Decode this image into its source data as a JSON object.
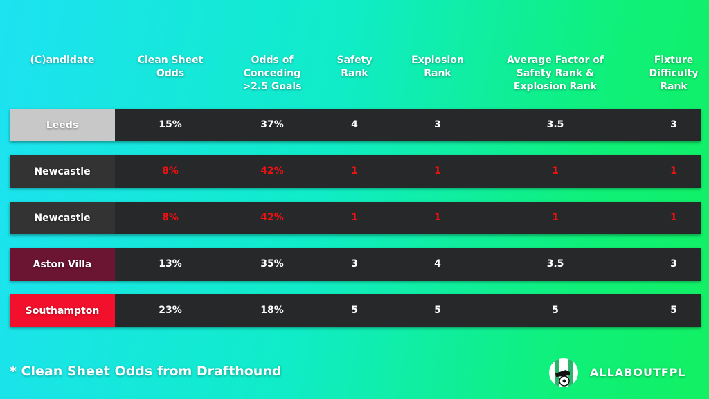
{
  "headers": [
    "(C)andidate",
    "Clean Sheet|Odds",
    "Odds of|Conceding|>2.5 Goals",
    "Safety|Rank",
    "Explosion|Rank",
    "Average Factor of|Safety Rank &|Explosion Rank",
    "Fixture|Difficulty|Rank"
  ],
  "rows": [
    {
      "team": "Leeds",
      "team_color": "#c8c8c8",
      "highlight": false,
      "values": [
        "15%",
        "37%",
        "4",
        "3",
        "3.5",
        "3"
      ]
    },
    {
      "team": "Newcastle",
      "team_color": "#333333",
      "highlight": true,
      "values": [
        "8%",
        "42%",
        "1",
        "1",
        "1",
        "1"
      ]
    },
    {
      "team": "Newcastle",
      "team_color": "#333333",
      "highlight": true,
      "values": [
        "8%",
        "42%",
        "1",
        "1",
        "1",
        "1"
      ]
    },
    {
      "team": "Aston Villa",
      "team_color": "#6b1532",
      "highlight": false,
      "values": [
        "13%",
        "35%",
        "3",
        "4",
        "3.5",
        "3"
      ]
    },
    {
      "team": "Southampton",
      "team_color": "#f2102c",
      "highlight": false,
      "values": [
        "23%",
        "18%",
        "5",
        "5",
        "5",
        "5"
      ]
    }
  ],
  "colors": {
    "highlight": "#ee1111",
    "row_bg": "#262829"
  },
  "footnote": "* Clean Sheet Odds from Drafthound",
  "brand": {
    "name": "ALLABOUTFPL",
    "icon": "boot-and-football-logo"
  }
}
